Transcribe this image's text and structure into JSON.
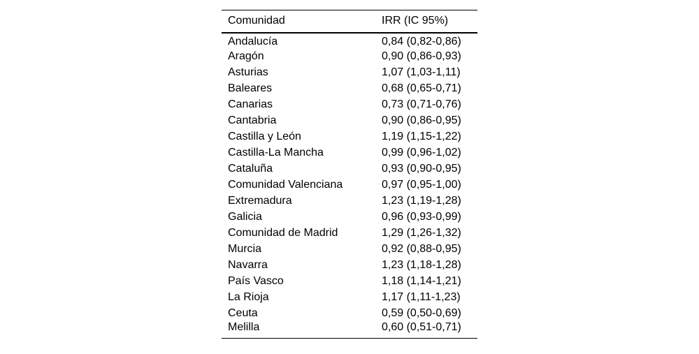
{
  "colors": {
    "background": "#ffffff",
    "text": "#000000",
    "rule": "#000000"
  },
  "table": {
    "headers": [
      "Comunidad",
      "IRR (IC 95%)"
    ],
    "rows": [
      {
        "comunidad": "Andalucía",
        "irr": "0,84 (0,82-0,86)"
      },
      {
        "comunidad": "Aragón",
        "irr": "0,90 (0,86-0,93)"
      },
      {
        "comunidad": "Asturias",
        "irr": "1,07 (1,03-1,11)"
      },
      {
        "comunidad": "Baleares",
        "irr": "0,68 (0,65-0,71)"
      },
      {
        "comunidad": "Canarias",
        "irr": "0,73 (0,71-0,76)"
      },
      {
        "comunidad": "Cantabria",
        "irr": "0,90 (0,86-0,95)"
      },
      {
        "comunidad": "Castilla y León",
        "irr": "1,19 (1,15-1,22)"
      },
      {
        "comunidad": "Castilla-La Mancha",
        "irr": "0,99 (0,96-1,02)"
      },
      {
        "comunidad": "Cataluña",
        "irr": "0,93 (0,90-0,95)"
      },
      {
        "comunidad": "Comunidad Valenciana",
        "irr": "0,97 (0,95-1,00)"
      },
      {
        "comunidad": "Extremadura",
        "irr": "1,23 (1,19-1,28)"
      },
      {
        "comunidad": "Galicia",
        "irr": "0,96 (0,93-0,99)"
      },
      {
        "comunidad": "Comunidad de Madrid",
        "irr": "1,29 (1,26-1,32)"
      },
      {
        "comunidad": "Murcia",
        "irr": "0,92 (0,88-0,95)"
      },
      {
        "comunidad": "Navarra",
        "irr": "1,23 (1,18-1,28)"
      },
      {
        "comunidad": "País Vasco",
        "irr": "1,18 (1,14-1,21)"
      },
      {
        "comunidad": "La Rioja",
        "irr": "1,17 (1,11-1,23)"
      },
      {
        "comunidad": "Ceuta",
        "irr": "0,59 (0,50-0,69)"
      },
      {
        "comunidad": "Melilla",
        "irr": "0,60 (0,51-0,71)"
      }
    ]
  }
}
